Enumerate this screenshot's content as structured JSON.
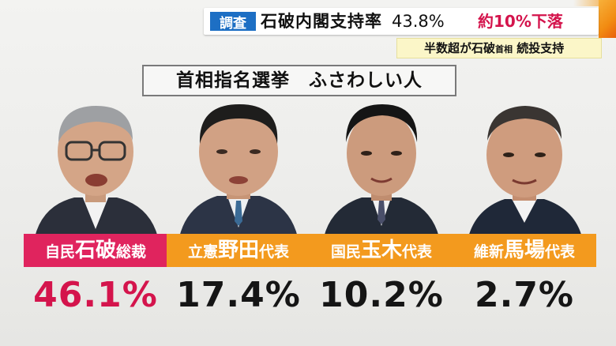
{
  "ticker": {
    "tag": "調査",
    "headline_main": "石破内閣支持率",
    "headline_value": "43.8%",
    "headline_change": "約10%下落",
    "sub_prefix": "半数超が石破",
    "sub_small": "首相",
    "sub_suffix": "続投支持"
  },
  "question": "首相指名選挙　ふさわしい人",
  "candidates": [
    {
      "party": "自民",
      "surname": "石破",
      "role": "総裁",
      "percent": "46.1%",
      "color": "#e0245e"
    },
    {
      "party": "立憲",
      "surname": "野田",
      "role": "代表",
      "percent": "17.4%",
      "color": "#f39a1e"
    },
    {
      "party": "国民",
      "surname": "玉木",
      "role": "代表",
      "percent": "10.2%",
      "color": "#f39a1e"
    },
    {
      "party": "維新",
      "surname": "馬場",
      "role": "代表",
      "percent": "2.7%",
      "color": "#f39a1e"
    }
  ],
  "colors": {
    "tag_blue": "#1d6fc4",
    "accent_red": "#d4144c",
    "accent_orange": "#f39a1e"
  }
}
